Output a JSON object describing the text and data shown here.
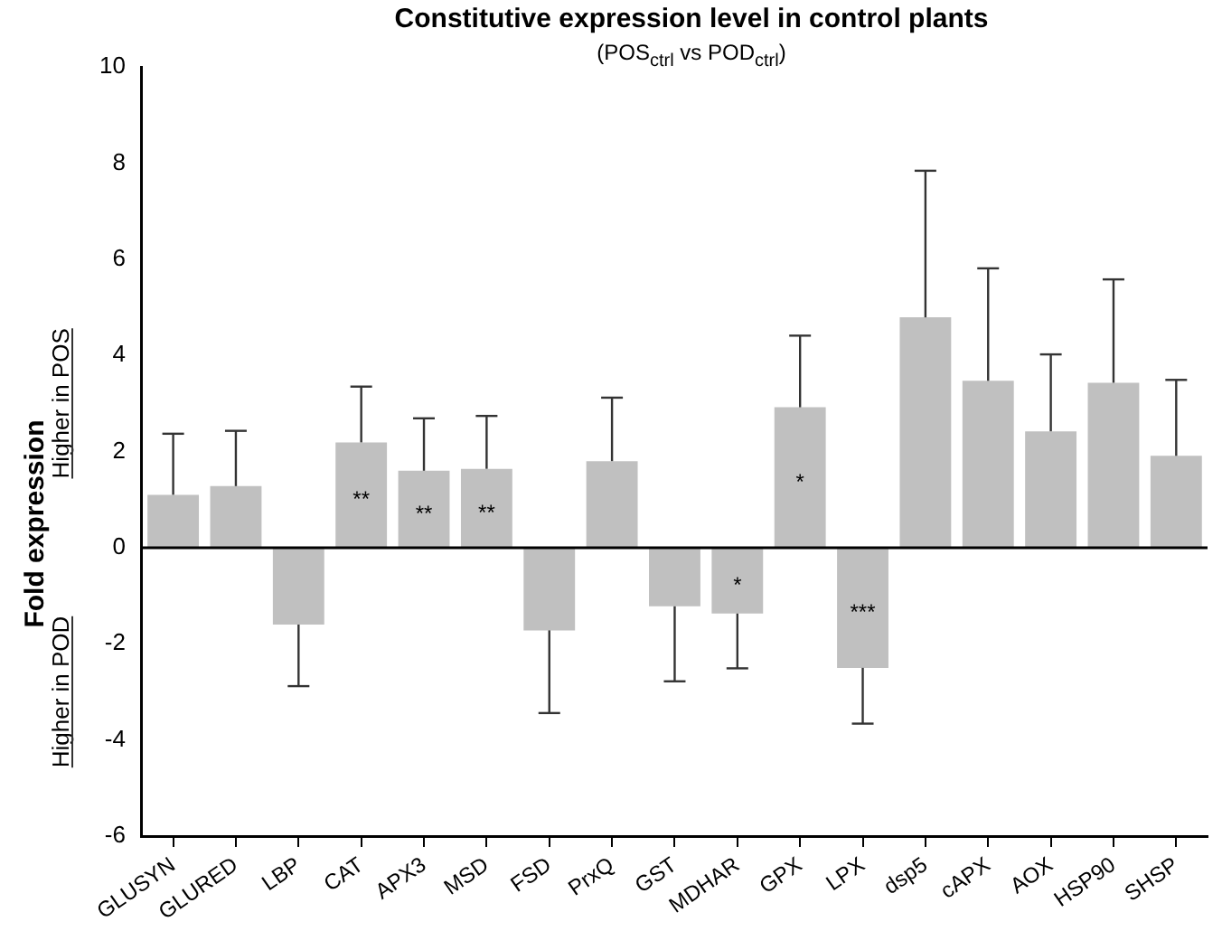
{
  "chart_data": {
    "type": "bar",
    "title": "Constitutive expression level in control plants",
    "subtitle": "(POS$_{ctrl}$ vs POD$_{ctrl}$)",
    "ylabel": "Fold expression",
    "categories": [
      "GLUSYN",
      "GLURED",
      "LBP",
      "CAT",
      "APX3",
      "MSD",
      "FSD",
      "PrxQ",
      "GST",
      "MDHAR",
      "GPX",
      "LPX",
      "dsp5",
      "cAPX",
      "AOX",
      "HSP90",
      "SHSP"
    ],
    "values": [
      1.1,
      1.28,
      -1.6,
      2.19,
      1.6,
      1.64,
      -1.72,
      1.8,
      -1.22,
      -1.37,
      2.92,
      -2.5,
      4.79,
      3.47,
      2.42,
      3.43,
      1.91
    ],
    "errors": [
      [
        1.1,
        2.37
      ],
      [
        1.28,
        2.43
      ],
      [
        -2.88,
        -1.6
      ],
      [
        2.19,
        3.35
      ],
      [
        1.6,
        2.69
      ],
      [
        1.64,
        2.74
      ],
      [
        -3.44,
        -1.72
      ],
      [
        1.8,
        3.12
      ],
      [
        -2.78,
        -1.22
      ],
      [
        -2.51,
        -1.37
      ],
      [
        2.92,
        4.41
      ],
      [
        -3.66,
        -2.5
      ],
      [
        4.79,
        7.84
      ],
      [
        3.47,
        5.81
      ],
      [
        2.42,
        4.02
      ],
      [
        3.43,
        5.58
      ],
      [
        1.91,
        3.49
      ]
    ],
    "value_labels": [
      null,
      null,
      null,
      "**",
      "**",
      "**",
      null,
      null,
      null,
      "*",
      "*",
      "***",
      null,
      null,
      null,
      null,
      null
    ],
    "color": "#c0c0c0",
    "ylim": [
      -6,
      10
    ],
    "yticks": [
      -6,
      -4,
      -2,
      0,
      2,
      4,
      6,
      8,
      10
    ],
    "annotations": [
      "Higher in POS",
      "Higher in POD"
    ]
  }
}
